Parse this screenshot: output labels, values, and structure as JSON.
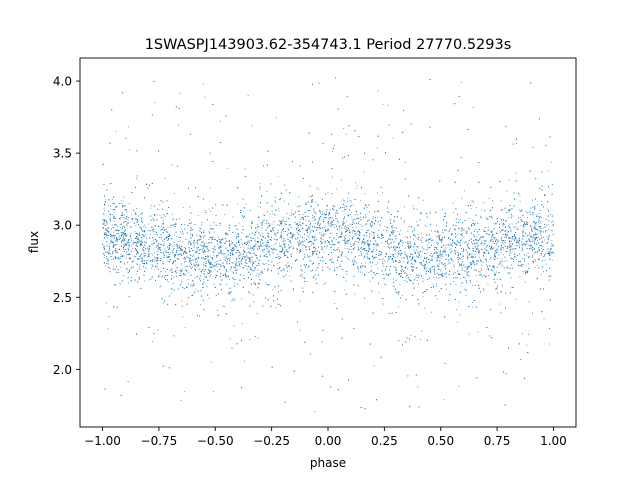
{
  "chart_data": {
    "type": "scatter",
    "title": "1SWASPJ143903.62-354743.1 Period 27770.5293s",
    "xlabel": "phase",
    "ylabel": "flux",
    "xlim": [
      -1.1,
      1.1
    ],
    "ylim": [
      1.6,
      4.16
    ],
    "x_ticks": [
      -1.0,
      -0.75,
      -0.5,
      -0.25,
      0.0,
      0.25,
      0.5,
      0.75,
      1.0
    ],
    "x_tick_labels": [
      "−1.00",
      "−0.75",
      "−0.50",
      "−0.25",
      "0.00",
      "0.25",
      "0.50",
      "0.75",
      "1.00"
    ],
    "y_ticks": [
      2.0,
      2.5,
      3.0,
      3.5,
      4.0
    ],
    "y_tick_labels": [
      "2.0",
      "2.5",
      "3.0",
      "3.5",
      "4.0"
    ],
    "series": [
      {
        "color": "#1f77b4",
        "marker_size": "tiny",
        "data_x_range": [
          -1.0,
          1.0
        ],
        "data_y_range": [
          1.7,
          4.05
        ],
        "mean_flux": 2.87,
        "profile": [
          {
            "phase": -1.0,
            "flux": 2.92
          },
          {
            "phase": -0.5,
            "flux": 2.78
          },
          {
            "phase": 0.0,
            "flux": 2.94
          },
          {
            "phase": 0.5,
            "flux": 2.78
          },
          {
            "phase": 1.0,
            "flux": 2.92
          }
        ]
      }
    ],
    "grid": false,
    "legend": "none"
  }
}
